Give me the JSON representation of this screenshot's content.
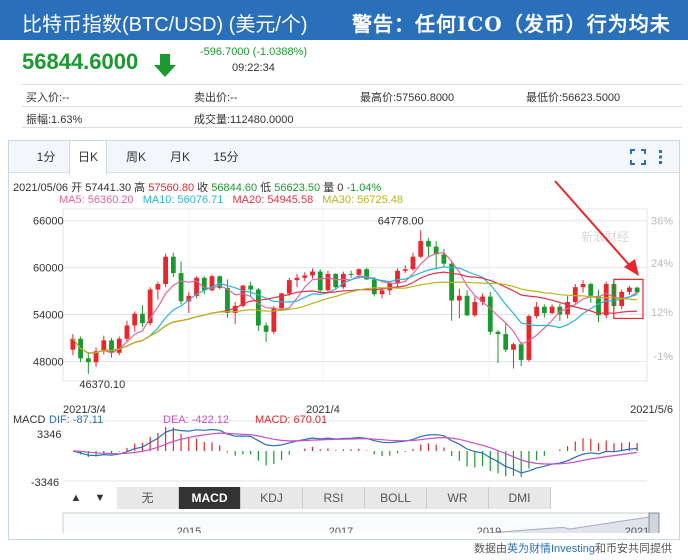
{
  "header": {
    "title": "比特币指数(BTC/USD) (美元/个)",
    "marquee": "警告：任何ICO（发币）行为均未"
  },
  "quote": {
    "price": "56844.6000",
    "change": "-596.7000 (-1.0388%)",
    "time": "09:22:34",
    "colors": {
      "down": "#1a9a2e",
      "up": "#e8262b"
    }
  },
  "stats": {
    "bid": "买入价:--",
    "ask": "卖出价:--",
    "high": "最高价:57560.8000",
    "low": "最低价:56623.5000",
    "amplitude": "振幅:1.63%",
    "volume": "成交量:112480.0000"
  },
  "tabs": [
    {
      "label": "1分"
    },
    {
      "label": "日K"
    },
    {
      "label": "周K"
    },
    {
      "label": "月K"
    },
    {
      "label": "15分"
    }
  ],
  "tools": [
    "fullscreen-icon",
    "settings-icon"
  ],
  "ohlc": {
    "date": "2021/05/06",
    "open_label": "开",
    "open": "57441.30",
    "high_label": "高",
    "high": "57560.80",
    "close_label": "收",
    "close": "56844.60",
    "low_label": "低",
    "low": "56623.50",
    "vol_label": "量",
    "vol": "0",
    "pct": "-1.04%"
  },
  "ma": {
    "ma5": "MA5: 56360.20",
    "ma10": "MA10: 56076.71",
    "ma20": "MA20: 54945.58",
    "ma30": "MA30: 56725.48",
    "colors": {
      "ma5": "#e066a0",
      "ma10": "#2bb5d8",
      "ma20": "#e0344a",
      "ma30": "#b8b41a"
    }
  },
  "macd": {
    "label": "MACD",
    "dif": "DIF: -87.11",
    "dea": "DEA: -422.12",
    "macd": "MACD: 670.01",
    "top": "3346",
    "bottom": "-3346"
  },
  "indicator_tabs": [
    "无",
    "MACD",
    "KDJ",
    "RSI",
    "BOLL",
    "WR",
    "DMI"
  ],
  "indicator_active": "MACD",
  "nav": {
    "up": "▲",
    "down": "▼"
  },
  "source": {
    "prefix": "数据由",
    "brand": "英为财情Investing",
    "suffix": "和币安共同提供"
  },
  "watermark": "新浪财经",
  "chart_data": {
    "type": "candlestick",
    "y_ticks": [
      "66000",
      "60000",
      "54000",
      "48000"
    ],
    "y_values": [
      66000,
      60000,
      54000,
      48000
    ],
    "pct_ticks": [
      "36%",
      "24%",
      "12%",
      "-1%"
    ],
    "x_labels": [
      "2021/3/4",
      "2021/4",
      "2021/5/6"
    ],
    "annotations": {
      "max": "64778.00",
      "min": "46370.10"
    },
    "nav_years": [
      "2015",
      "2017",
      "2019",
      "2021"
    ],
    "ylim": [
      45500,
      67500
    ],
    "candles": [
      [
        49500,
        51500,
        48800,
        50900
      ],
      [
        50900,
        51200,
        47900,
        48400
      ],
      [
        48400,
        49200,
        46370,
        47900
      ],
      [
        47900,
        49800,
        47300,
        49300
      ],
      [
        49300,
        51300,
        48900,
        50700
      ],
      [
        50700,
        51000,
        48500,
        49100
      ],
      [
        49100,
        51200,
        48800,
        50900
      ],
      [
        50900,
        53200,
        50600,
        52600
      ],
      [
        52600,
        54400,
        51800,
        54100
      ],
      [
        54100,
        55200,
        52400,
        52900
      ],
      [
        52900,
        57500,
        52600,
        57200
      ],
      [
        57200,
        58200,
        55900,
        57900
      ],
      [
        57900,
        61800,
        57500,
        61400
      ],
      [
        61400,
        61900,
        58800,
        59300
      ],
      [
        59300,
        60800,
        55300,
        55700
      ],
      [
        55700,
        56900,
        54200,
        56400
      ],
      [
        56400,
        58900,
        56100,
        58700
      ],
      [
        58700,
        58900,
        56600,
        57100
      ],
      [
        57100,
        59100,
        57000,
        58900
      ],
      [
        58900,
        59000,
        57200,
        57400
      ],
      [
        57400,
        58500,
        53600,
        54200
      ],
      [
        54200,
        55600,
        52800,
        55100
      ],
      [
        55100,
        57800,
        54900,
        57700
      ],
      [
        57700,
        58200,
        56300,
        57200
      ],
      [
        57200,
        57400,
        51900,
        52600
      ],
      [
        52600,
        53000,
        50500,
        51800
      ],
      [
        51800,
        55100,
        51500,
        54800
      ],
      [
        54800,
        56800,
        54600,
        56700
      ],
      [
        56700,
        58700,
        56400,
        58400
      ],
      [
        58400,
        59200,
        57500,
        58700
      ],
      [
        58700,
        59400,
        58300,
        59000
      ],
      [
        59000,
        59900,
        58600,
        59500
      ],
      [
        59500,
        59800,
        56800,
        57100
      ],
      [
        57100,
        59600,
        56900,
        59200
      ],
      [
        59200,
        59300,
        57300,
        57500
      ],
      [
        57500,
        59500,
        57300,
        59200
      ],
      [
        59200,
        59600,
        58700,
        59100
      ],
      [
        59100,
        59900,
        58600,
        59800
      ],
      [
        59800,
        60000,
        58400,
        58500
      ],
      [
        58500,
        58800,
        56300,
        56600
      ],
      [
        56600,
        57400,
        56100,
        57100
      ],
      [
        57100,
        58300,
        56500,
        58100
      ],
      [
        58100,
        59900,
        57500,
        59600
      ],
      [
        59600,
        60300,
        59300,
        59800
      ],
      [
        59800,
        61900,
        59600,
        61400
      ],
      [
        61400,
        64778,
        61200,
        63400
      ],
      [
        63400,
        63800,
        61300,
        62700
      ],
      [
        62700,
        63400,
        59900,
        61700
      ],
      [
        61700,
        62400,
        60100,
        60500
      ],
      [
        60500,
        60900,
        53200,
        55800
      ],
      [
        55800,
        57300,
        53500,
        56400
      ],
      [
        56400,
        57100,
        53800,
        53900
      ],
      [
        53900,
        56300,
        53700,
        55600
      ],
      [
        55600,
        56700,
        55200,
        56300
      ],
      [
        56300,
        56900,
        51400,
        51800
      ],
      [
        51800,
        52000,
        47800,
        51500
      ],
      [
        51500,
        53000,
        49200,
        49500
      ],
      [
        49500,
        50400,
        47100,
        50200
      ],
      [
        50200,
        50500,
        47400,
        48200
      ],
      [
        48200,
        54000,
        48000,
        53800
      ],
      [
        53800,
        55600,
        53500,
        55000
      ],
      [
        55000,
        55300,
        53600,
        54200
      ],
      [
        54200,
        55300,
        54000,
        55000
      ],
      [
        55000,
        55400,
        53200,
        54000
      ],
      [
        54000,
        56400,
        53500,
        55600
      ],
      [
        55600,
        57900,
        55400,
        57500
      ],
      [
        57500,
        58400,
        56800,
        57900
      ],
      [
        57900,
        58100,
        55500,
        56400
      ],
      [
        56400,
        57200,
        53000,
        53900
      ],
      [
        53900,
        58200,
        53500,
        57900
      ],
      [
        57900,
        58600,
        54800,
        55100
      ],
      [
        55100,
        57200,
        54700,
        56900
      ],
      [
        56900,
        57700,
        56500,
        57440
      ],
      [
        57441,
        57561,
        56624,
        56845
      ]
    ]
  }
}
